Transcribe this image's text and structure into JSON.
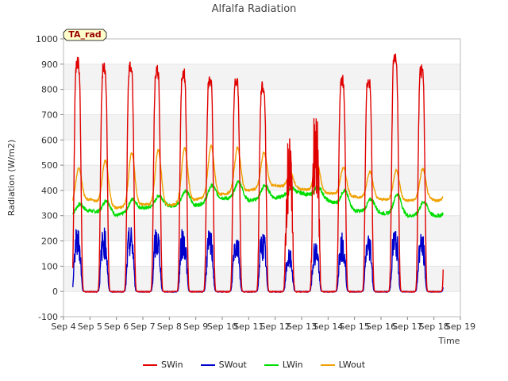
{
  "chart_data": {
    "type": "line",
    "title": "Alfalfa Radiation",
    "xlabel": "Time",
    "ylabel": "Radiation (W/m2)",
    "badge": "TA_rad",
    "ylim": [
      -100,
      1000
    ],
    "yticks": [
      -100,
      0,
      100,
      200,
      300,
      400,
      500,
      600,
      700,
      800,
      900,
      1000
    ],
    "xlim": [
      4,
      19
    ],
    "xticks": [
      {
        "v": 4,
        "label": "Sep 4"
      },
      {
        "v": 5,
        "label": "Sep 5"
      },
      {
        "v": 6,
        "label": "Sep 6"
      },
      {
        "v": 7,
        "label": "Sep 7"
      },
      {
        "v": 8,
        "label": "Sep 8"
      },
      {
        "v": 9,
        "label": "Sep 9"
      },
      {
        "v": 10,
        "label": "Sep 10"
      },
      {
        "v": 11,
        "label": "Sep 11"
      },
      {
        "v": 12,
        "label": "Sep 12"
      },
      {
        "v": 13,
        "label": "Sep 13"
      },
      {
        "v": 14,
        "label": "Sep 14"
      },
      {
        "v": 15,
        "label": "Sep 15"
      },
      {
        "v": 16,
        "label": "Sep 16"
      },
      {
        "v": 17,
        "label": "Sep 17"
      },
      {
        "v": 18,
        "label": "Sep 18"
      },
      {
        "v": 19,
        "label": "Sep 19"
      }
    ],
    "grid": "horizontal bands",
    "legend_position": "bottom",
    "x_range": [
      4.35,
      18.35
    ],
    "days": [
      4,
      5,
      6,
      7,
      8,
      9,
      10,
      11,
      12,
      13,
      14,
      15,
      16,
      17,
      18
    ],
    "series": [
      {
        "name": "SWin",
        "color": "#e00000",
        "daily_peak": [
          920,
          895,
          900,
          880,
          870,
          845,
          845,
          820,
          550,
          680,
          840,
          840,
          935,
          880
        ]
      },
      {
        "name": "SWout",
        "color": "#0000cc",
        "daily_peak": [
          230,
          230,
          235,
          232,
          230,
          220,
          220,
          218,
          150,
          185,
          215,
          215,
          230,
          210
        ]
      },
      {
        "name": "LWin",
        "color": "#00dd00",
        "night_min": [
          290,
          320,
          300,
          330,
          340,
          340,
          370,
          360,
          370,
          390,
          360,
          320,
          310,
          300,
          300
        ],
        "day_max": [
          345,
          360,
          365,
          380,
          400,
          420,
          435,
          420,
          410,
          415,
          400,
          365,
          385,
          355
        ]
      },
      {
        "name": "LWout",
        "color": "#f0a000",
        "night_min": [
          335,
          365,
          330,
          345,
          340,
          365,
          385,
          400,
          420,
          405,
          390,
          375,
          365,
          360,
          365
        ],
        "day_max": [
          490,
          520,
          550,
          560,
          570,
          575,
          570,
          550,
          470,
          510,
          490,
          475,
          480,
          485
        ]
      }
    ]
  }
}
